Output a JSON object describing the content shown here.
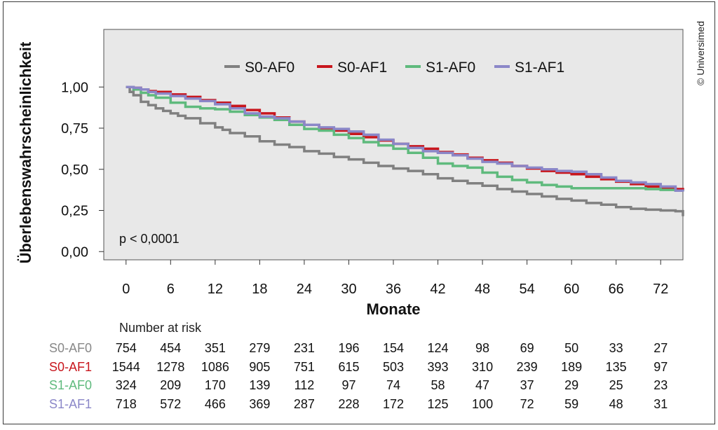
{
  "copyright": "© Universimed",
  "chart_data": {
    "type": "line",
    "xlabel": "Monate",
    "ylabel": "Überlebenswahrscheinlichkeit",
    "xlim": [
      -3,
      75
    ],
    "ylim": [
      -0.05,
      1.35
    ],
    "x_ticks": [
      0,
      6,
      12,
      18,
      24,
      30,
      36,
      42,
      48,
      54,
      60,
      66,
      72
    ],
    "y_ticks": [
      0.0,
      0.25,
      0.5,
      0.75,
      1.0
    ],
    "y_tick_labels": [
      "0,00",
      "0,25",
      "0,50",
      "0,75",
      "1,00"
    ],
    "grid": false,
    "background": "#e8e8e8",
    "legend_position": "top-center",
    "annotation": "p < 0,0001",
    "series": [
      {
        "name": "S0-AF0",
        "color": "#808080",
        "x": [
          0,
          0.5,
          1,
          2,
          3,
          4,
          5,
          6,
          7,
          8,
          10,
          12,
          13,
          14,
          16,
          18,
          20,
          22,
          24,
          26,
          28,
          30,
          32,
          34,
          36,
          38,
          40,
          42,
          44,
          46,
          48,
          50,
          52,
          54,
          56,
          58,
          60,
          62,
          64,
          66,
          68,
          70,
          72,
          74,
          75
        ],
        "y": [
          1.0,
          0.97,
          0.95,
          0.91,
          0.89,
          0.87,
          0.855,
          0.84,
          0.825,
          0.81,
          0.78,
          0.755,
          0.74,
          0.72,
          0.7,
          0.67,
          0.65,
          0.635,
          0.61,
          0.595,
          0.575,
          0.56,
          0.54,
          0.52,
          0.505,
          0.49,
          0.47,
          0.445,
          0.43,
          0.415,
          0.4,
          0.38,
          0.365,
          0.35,
          0.335,
          0.32,
          0.31,
          0.295,
          0.285,
          0.27,
          0.26,
          0.255,
          0.25,
          0.245,
          0.215
        ]
      },
      {
        "name": "S0-AF1",
        "color": "#c8161d",
        "x": [
          0,
          1,
          2,
          3,
          4,
          6,
          8,
          10,
          12,
          14,
          16,
          18,
          20,
          22,
          24,
          26,
          28,
          30,
          32,
          34,
          36,
          38,
          40,
          42,
          44,
          46,
          48,
          50,
          52,
          54,
          56,
          58,
          60,
          62,
          64,
          66,
          68,
          70,
          72,
          74,
          75
        ],
        "y": [
          1.0,
          0.995,
          0.985,
          0.975,
          0.97,
          0.955,
          0.94,
          0.92,
          0.905,
          0.885,
          0.86,
          0.84,
          0.815,
          0.79,
          0.77,
          0.75,
          0.735,
          0.715,
          0.695,
          0.675,
          0.655,
          0.64,
          0.625,
          0.605,
          0.59,
          0.57,
          0.555,
          0.54,
          0.52,
          0.505,
          0.49,
          0.48,
          0.47,
          0.455,
          0.44,
          0.425,
          0.41,
          0.395,
          0.385,
          0.38,
          0.375
        ]
      },
      {
        "name": "S1-AF0",
        "color": "#5fba7d",
        "x": [
          0,
          1,
          2,
          3,
          4,
          6,
          8,
          10,
          12,
          14,
          16,
          18,
          20,
          22,
          24,
          26,
          28,
          30,
          32,
          34,
          36,
          38,
          40,
          42,
          44,
          46,
          48,
          50,
          52,
          54,
          56,
          58,
          60,
          62,
          64,
          66,
          68,
          70,
          72,
          74,
          75
        ],
        "y": [
          1.0,
          0.985,
          0.965,
          0.95,
          0.935,
          0.905,
          0.88,
          0.87,
          0.865,
          0.85,
          0.83,
          0.815,
          0.8,
          0.77,
          0.745,
          0.735,
          0.71,
          0.69,
          0.665,
          0.645,
          0.625,
          0.6,
          0.57,
          0.535,
          0.52,
          0.51,
          0.48,
          0.455,
          0.435,
          0.42,
          0.405,
          0.395,
          0.385,
          0.385,
          0.385,
          0.385,
          0.385,
          0.38,
          0.375,
          0.37,
          0.365
        ]
      },
      {
        "name": "S1-AF1",
        "color": "#8b87c8",
        "x": [
          0,
          1,
          2,
          3,
          4,
          6,
          8,
          10,
          12,
          14,
          16,
          18,
          20,
          22,
          24,
          26,
          28,
          30,
          32,
          34,
          36,
          38,
          40,
          42,
          44,
          46,
          48,
          50,
          52,
          54,
          56,
          58,
          60,
          62,
          64,
          66,
          68,
          70,
          72,
          74,
          75
        ],
        "y": [
          1.0,
          0.995,
          0.985,
          0.97,
          0.96,
          0.945,
          0.93,
          0.915,
          0.895,
          0.87,
          0.84,
          0.82,
          0.81,
          0.79,
          0.77,
          0.755,
          0.745,
          0.73,
          0.71,
          0.68,
          0.655,
          0.63,
          0.61,
          0.6,
          0.585,
          0.565,
          0.545,
          0.535,
          0.52,
          0.51,
          0.5,
          0.49,
          0.485,
          0.47,
          0.45,
          0.43,
          0.42,
          0.41,
          0.395,
          0.37,
          0.365
        ]
      }
    ]
  },
  "risk_table": {
    "title": "Number at risk",
    "rows": [
      {
        "name": "S0-AF0",
        "color": "#888888",
        "values": [
          "754",
          "454",
          "351",
          "279",
          "231",
          "196",
          "154",
          "124",
          "98",
          "69",
          "50",
          "33",
          "27"
        ]
      },
      {
        "name": "S0-AF1",
        "color": "#c8161d",
        "values": [
          "1544",
          "1278",
          "1086",
          "905",
          "751",
          "615",
          "503",
          "393",
          "310",
          "239",
          "189",
          "135",
          "97"
        ]
      },
      {
        "name": "S1-AF0",
        "color": "#5fba7d",
        "values": [
          "324",
          "209",
          "170",
          "139",
          "112",
          "97",
          "74",
          "58",
          "47",
          "37",
          "29",
          "25",
          "23"
        ]
      },
      {
        "name": "S1-AF1",
        "color": "#8b87c8",
        "values": [
          "718",
          "572",
          "466",
          "369",
          "287",
          "228",
          "172",
          "125",
          "100",
          "72",
          "59",
          "48",
          "31"
        ]
      }
    ]
  }
}
